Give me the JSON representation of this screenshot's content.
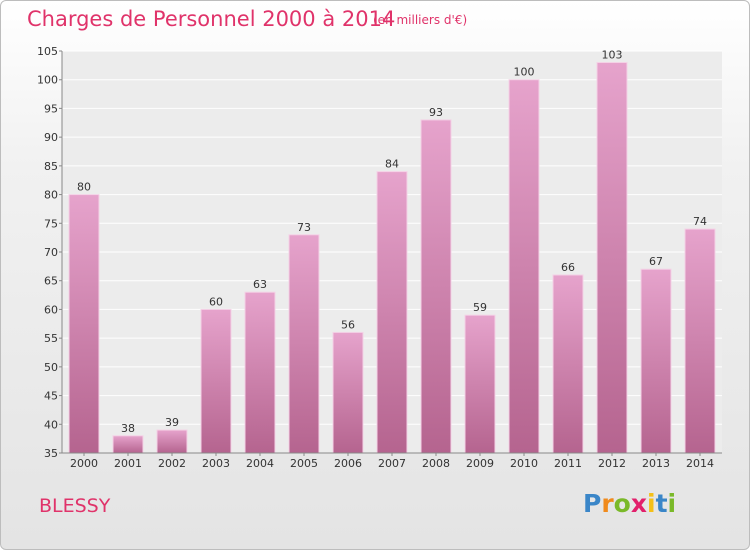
{
  "header": {
    "title": "Charges de Personnel 2000 à 2014",
    "subtitle": "(en milliers d'€)"
  },
  "footer": {
    "commune": "BLESSY",
    "brand": "Proxiti",
    "brand_letters": [
      {
        "ch": "P",
        "color": "#3a86c8"
      },
      {
        "ch": "r",
        "color": "#f08a1c"
      },
      {
        "ch": "o",
        "color": "#7ab929"
      },
      {
        "ch": "x",
        "color": "#e2206b"
      },
      {
        "ch": "i",
        "color": "#f4c018"
      },
      {
        "ch": "t",
        "color": "#3a86c8"
      },
      {
        "ch": "i",
        "color": "#7ab929"
      }
    ]
  },
  "colors": {
    "title": "#e0336a",
    "bar_top": "#e6a3cc",
    "bar_bottom": "#b5648f",
    "grid": "#ffffff",
    "axis_text": "#333333"
  },
  "chart_data": {
    "type": "bar",
    "categories": [
      "2000",
      "2001",
      "2002",
      "2003",
      "2004",
      "2005",
      "2006",
      "2007",
      "2008",
      "2009",
      "2010",
      "2011",
      "2012",
      "2013",
      "2014"
    ],
    "values": [
      80,
      38,
      39,
      60,
      63,
      73,
      56,
      84,
      93,
      59,
      100,
      66,
      103,
      67,
      74
    ],
    "ylim": [
      35,
      105
    ],
    "yticks": [
      35,
      40,
      45,
      50,
      55,
      60,
      65,
      70,
      75,
      80,
      85,
      90,
      95,
      100,
      105
    ],
    "grid": true,
    "data_labels": true
  }
}
